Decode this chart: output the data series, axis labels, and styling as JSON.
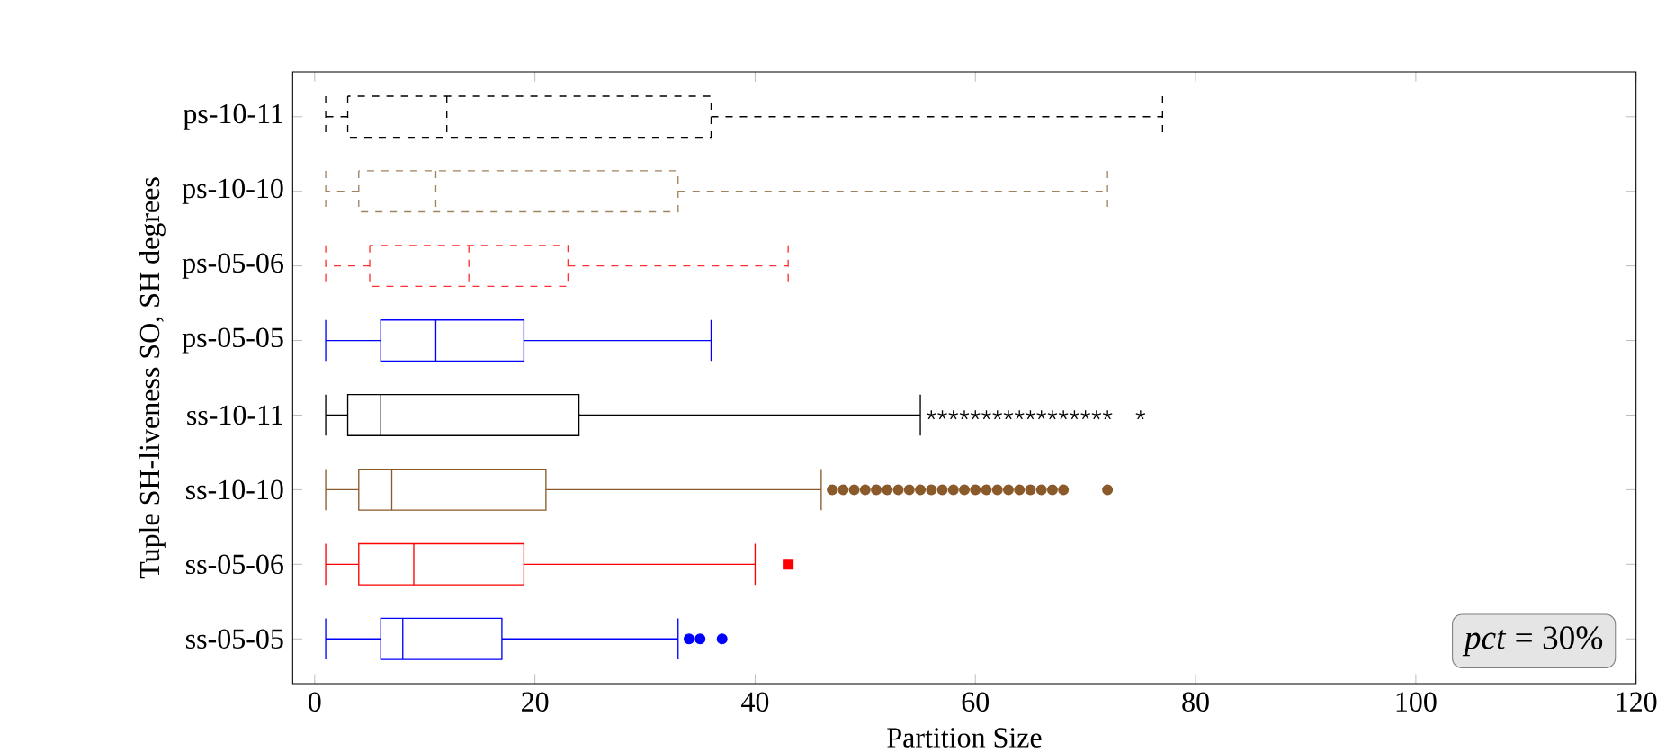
{
  "chart_data": {
    "type": "box",
    "orientation": "horizontal",
    "xlabel": "Partition Size",
    "ylabel": "Tuple SH-liveness SO, SH degrees",
    "categories": [
      "ps-10-11",
      "ps-10-10",
      "ps-05-06",
      "ps-05-05",
      "ss-10-11",
      "ss-10-10",
      "ss-05-06",
      "ss-05-05"
    ],
    "xlim": [
      -2,
      120
    ],
    "xticks": [
      0,
      20,
      40,
      60,
      80,
      100,
      120
    ],
    "annotations": [
      "*pct* = 30%"
    ],
    "series": [
      {
        "color": "#000000",
        "line_style": "dashed",
        "marker": "none",
        "boxes": [
          {
            "low": 1,
            "q1": 3,
            "median": 12,
            "q3": 36,
            "high": 77
          },
          null,
          null,
          null,
          null,
          null,
          null,
          null
        ]
      },
      {
        "color": "#a0825f",
        "line_style": "dashed",
        "marker": "none",
        "boxes": [
          null,
          {
            "low": 1,
            "q1": 4,
            "median": 11,
            "q3": 33,
            "high": 72
          },
          null,
          null,
          null,
          null,
          null,
          null
        ]
      },
      {
        "color": "#ff3030",
        "line_style": "dashed",
        "marker": "none",
        "boxes": [
          null,
          null,
          {
            "low": 1,
            "q1": 5,
            "median": 14,
            "q3": 23,
            "high": 43
          },
          null,
          null,
          null,
          null,
          null
        ]
      },
      {
        "color": "#0000ff",
        "line_style": "solid",
        "marker": "none",
        "boxes": [
          null,
          null,
          null,
          {
            "low": 1,
            "q1": 6,
            "median": 11,
            "q3": 19,
            "high": 36
          },
          null,
          null,
          null,
          null
        ]
      },
      {
        "color": "#000000",
        "line_style": "solid",
        "marker": "star",
        "boxes": [
          null,
          null,
          null,
          null,
          {
            "low": 1,
            "q1": 3,
            "median": 6,
            "q3": 24,
            "high": 55,
            "outliers": [
              56,
              57,
              58,
              59,
              60,
              61,
              62,
              63,
              64,
              65,
              66,
              67,
              68,
              69,
              70,
              71,
              72,
              75
            ]
          },
          null,
          null,
          null
        ]
      },
      {
        "color": "#8b5a2b",
        "line_style": "solid",
        "marker": "circle",
        "boxes": [
          null,
          null,
          null,
          null,
          null,
          {
            "low": 1,
            "q1": 4,
            "median": 7,
            "q3": 21,
            "high": 46,
            "outliers": [
              47,
              48,
              49,
              50,
              51,
              52,
              53,
              54,
              55,
              56,
              57,
              58,
              59,
              60,
              61,
              62,
              63,
              64,
              65,
              66,
              67,
              68,
              72
            ]
          },
          null,
          null
        ]
      },
      {
        "color": "#ff0000",
        "line_style": "solid",
        "marker": "square",
        "boxes": [
          null,
          null,
          null,
          null,
          null,
          null,
          {
            "low": 1,
            "q1": 4,
            "median": 9,
            "q3": 19,
            "high": 40,
            "outliers": [
              43
            ]
          },
          null
        ]
      },
      {
        "color": "#0000ff",
        "line_style": "solid",
        "marker": "circle",
        "boxes": [
          null,
          null,
          null,
          null,
          null,
          null,
          null,
          {
            "low": 1,
            "q1": 6,
            "median": 8,
            "q3": 17,
            "high": 33,
            "outliers": [
              34,
              35,
              37
            ]
          }
        ]
      }
    ]
  }
}
